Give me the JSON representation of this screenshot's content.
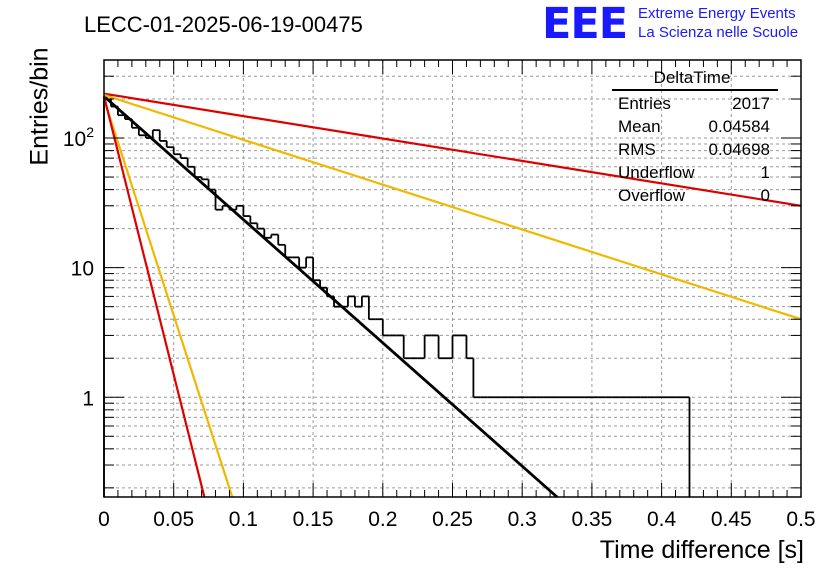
{
  "header": {
    "plot_title": "LECC-01-2025-06-19-00475",
    "logo_text": "EEE",
    "logo_line1": "Extreme Energy Events",
    "logo_line2": "La Scienza nelle Scuole"
  },
  "stats": {
    "title": "DeltaTime",
    "rows": [
      {
        "key": "Entries",
        "value": "2017"
      },
      {
        "key": "Mean",
        "value": "0.04584"
      },
      {
        "key": "RMS",
        "value": "0.04698"
      },
      {
        "key": "Underflow",
        "value": "1"
      },
      {
        "key": "Overflow",
        "value": "0"
      }
    ]
  },
  "chart_data": {
    "type": "line",
    "title": "LECC-01-2025-06-19-00475",
    "xlabel": "Time difference [s]",
    "ylabel": "Entries/bin",
    "xlim": [
      0,
      0.5
    ],
    "ylim": [
      0.17,
      400
    ],
    "yscale": "log",
    "grid": true,
    "x_tick_labels": [
      "0",
      "0.05",
      "0.1",
      "0.15",
      "0.2",
      "0.25",
      "0.3",
      "0.35",
      "0.4",
      "0.45",
      "0.5"
    ],
    "y_tick_labels": [
      "1",
      "10",
      "10^2"
    ],
    "histogram": {
      "bin_width": 0.005,
      "color": "#000000",
      "values": [
        210,
        175,
        150,
        140,
        120,
        105,
        100,
        115,
        95,
        85,
        75,
        70,
        60,
        50,
        48,
        40,
        28,
        30,
        28,
        30,
        25,
        22,
        20,
        17,
        18,
        15,
        12,
        12,
        10,
        12,
        8,
        7,
        6,
        5,
        5,
        6,
        5,
        6,
        4,
        4,
        3,
        3,
        3,
        2,
        2,
        2,
        3,
        3,
        2,
        2,
        3,
        3,
        2,
        1,
        1,
        1,
        1,
        1,
        1,
        1,
        1,
        1,
        1,
        1,
        1,
        1,
        1,
        1,
        1,
        1,
        1,
        1,
        1,
        1,
        1,
        1,
        1,
        1,
        1,
        1,
        1,
        1,
        1,
        1
      ]
    },
    "series": [
      {
        "color": "#000000",
        "y0": 210,
        "x_end": 0.325,
        "y_end": 0.17
      },
      {
        "color": "#dd0000",
        "y0": 220,
        "x_end": 0.5,
        "y_end": 30
      },
      {
        "color": "#f0b800",
        "y0": 215,
        "x_end": 0.5,
        "y_end": 4
      },
      {
        "color": "#f0b800",
        "y0": 200,
        "x_end": 0.092,
        "y_end": 0.17
      },
      {
        "color": "#dd0000",
        "y0": 210,
        "x_end": 0.072,
        "y_end": 0.17
      }
    ]
  }
}
